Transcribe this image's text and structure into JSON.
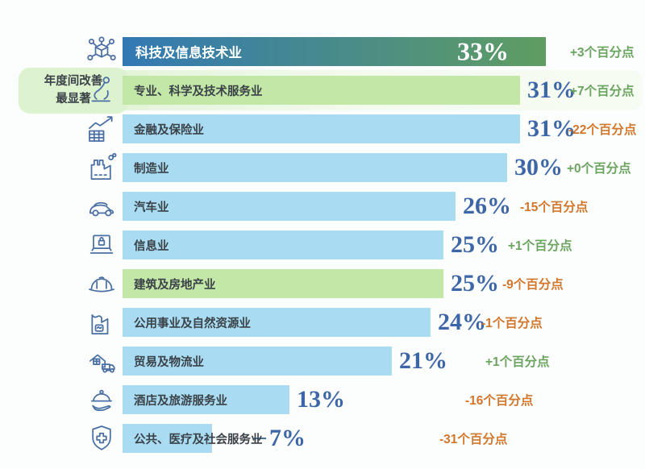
{
  "chart_data": {
    "type": "bar",
    "orientation": "horizontal",
    "value_unit": "%",
    "xlim": [
      0,
      33
    ],
    "grid": false,
    "legend": "none",
    "callout": {
      "line1": "年度间改善",
      "line2": "最显著"
    },
    "colors": {
      "bar_blue": "#a9dcf3",
      "bar_green": "#c3e7a6",
      "gradient_start": "#3279b4",
      "gradient_end": "#5f9d62",
      "percent_text": "#3c66a6",
      "positive_change": "#6aa45f",
      "negative_change": "#d1762b",
      "label_dark": "#3b4248",
      "icon_stroke": "#4a6fa5",
      "callout_bg": "#ddf2cf"
    },
    "rows": [
      {
        "label": "科技及信息技术业",
        "value": 33,
        "value_label": "33%",
        "change": "+3个百分点",
        "change_color": "green",
        "bar_style": "gradient",
        "icon": "tech-network-icon"
      },
      {
        "label": "专业、科学及技术服务业",
        "value": 31,
        "value_label": "31%",
        "change": "+7个百分点",
        "change_color": "green",
        "bar_style": "green",
        "icon": "microscope-icon",
        "highlighted": true
      },
      {
        "label": "金融及保险业",
        "value": 31,
        "value_label": "31%",
        "change": "-22个百分点",
        "change_color": "orange",
        "bar_style": "blue",
        "icon": "growth-chart-icon"
      },
      {
        "label": "制造业",
        "value": 30,
        "value_label": "30%",
        "change": "+0个百分点",
        "change_color": "green",
        "bar_style": "blue",
        "icon": "factory-icon"
      },
      {
        "label": "汽车业",
        "value": 26,
        "value_label": "26%",
        "change": "-15个百分点",
        "change_color": "orange",
        "bar_style": "blue",
        "icon": "car-icon"
      },
      {
        "label": "信息业",
        "value": 25,
        "value_label": "25%",
        "change": "+1个百分点",
        "change_color": "green",
        "bar_style": "blue",
        "icon": "laptop-lock-icon"
      },
      {
        "label": "建筑及房地产业",
        "value": 25,
        "value_label": "25%",
        "change": "-9个百分点",
        "change_color": "orange",
        "bar_style": "green",
        "icon": "hard-hat-icon"
      },
      {
        "label": "公用事业及自然资源业",
        "value": 24,
        "value_label": "24%",
        "change": "-1个百分点",
        "change_color": "orange",
        "bar_style": "blue",
        "icon": "utility-factory-icon"
      },
      {
        "label": "贸易及物流业",
        "value": 21,
        "value_label": "21%",
        "change": "+1个百分点",
        "change_color": "green",
        "bar_style": "blue",
        "icon": "warehouse-truck-icon"
      },
      {
        "label": "酒店及旅游服务业",
        "value": 13,
        "value_label": "13%",
        "change": "-16个百分点",
        "change_color": "orange",
        "bar_style": "blue",
        "icon": "cloche-hand-icon"
      },
      {
        "label": "公共、医疗及社会服务业",
        "value": 7,
        "value_label": "7%",
        "change": "-31个百分点",
        "change_color": "orange",
        "bar_style": "blue",
        "icon": "shield-cross-icon"
      }
    ]
  }
}
